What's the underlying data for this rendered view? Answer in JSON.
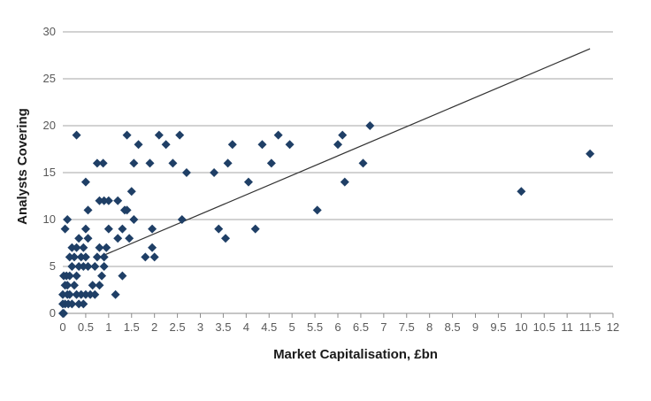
{
  "chart_data": {
    "type": "scatter",
    "title": "",
    "xlabel": "Market Capitalisation, £bn",
    "ylabel": "Analysts Covering",
    "xlim": [
      0,
      12
    ],
    "ylim": [
      0,
      30
    ],
    "x_ticks": [
      "0",
      "0.5",
      "1",
      "1.5",
      "2",
      "2.5",
      "3",
      "3.5",
      "4",
      "4.5",
      "5",
      "5.5",
      "6",
      "6.5",
      "7",
      "7.5",
      "8",
      "8.5",
      "9",
      "9.5",
      "10",
      "10.5",
      "11",
      "11.5",
      "12"
    ],
    "y_ticks": [
      "0",
      "5",
      "10",
      "15",
      "20",
      "25",
      "30"
    ],
    "grid": "horizontal",
    "marker_color": "#1f3f66",
    "trendline": {
      "x": [
        0.8,
        11.5
      ],
      "y": [
        6,
        28.2
      ]
    },
    "points": [
      [
        0,
        0
      ],
      [
        0.02,
        0
      ],
      [
        0,
        1
      ],
      [
        0.05,
        1
      ],
      [
        0,
        2
      ],
      [
        0.05,
        3
      ],
      [
        0.02,
        4
      ],
      [
        0.1,
        2
      ],
      [
        0.1,
        3
      ],
      [
        0.08,
        4
      ],
      [
        0.12,
        1
      ],
      [
        0.15,
        2
      ],
      [
        0.15,
        4
      ],
      [
        0.15,
        6
      ],
      [
        0.2,
        5
      ],
      [
        0.2,
        7
      ],
      [
        0.2,
        1
      ],
      [
        0.25,
        3
      ],
      [
        0.25,
        6
      ],
      [
        0.3,
        2
      ],
      [
        0.3,
        4
      ],
      [
        0.3,
        7
      ],
      [
        0.35,
        1
      ],
      [
        0.35,
        5
      ],
      [
        0.35,
        8
      ],
      [
        0.4,
        2
      ],
      [
        0.4,
        6
      ],
      [
        0.45,
        1
      ],
      [
        0.45,
        7
      ],
      [
        0.45,
        5
      ],
      [
        0.5,
        9
      ],
      [
        0.5,
        2
      ],
      [
        0.5,
        6
      ],
      [
        0.55,
        8
      ],
      [
        0.55,
        5
      ],
      [
        0.6,
        2
      ],
      [
        0.65,
        3
      ],
      [
        0.7,
        2
      ],
      [
        0.7,
        5
      ],
      [
        0.75,
        6
      ],
      [
        0.8,
        3
      ],
      [
        0.8,
        7
      ],
      [
        0.85,
        4
      ],
      [
        0.9,
        5
      ],
      [
        0.9,
        6
      ],
      [
        0.95,
        7
      ],
      [
        0.9,
        12
      ],
      [
        1.0,
        9
      ],
      [
        1.0,
        12
      ],
      [
        1.15,
        2
      ],
      [
        1.2,
        8
      ],
      [
        0.05,
        9
      ],
      [
        0.1,
        10
      ],
      [
        0.3,
        19
      ],
      [
        0.5,
        14
      ],
      [
        0.55,
        11
      ],
      [
        0.75,
        16
      ],
      [
        0.88,
        16
      ],
      [
        0.8,
        12
      ],
      [
        1.2,
        12
      ],
      [
        1.3,
        9
      ],
      [
        1.3,
        4
      ],
      [
        1.35,
        11
      ],
      [
        1.4,
        11
      ],
      [
        1.45,
        8
      ],
      [
        1.5,
        13
      ],
      [
        1.55,
        10
      ],
      [
        1.55,
        16
      ],
      [
        1.65,
        18
      ],
      [
        1.4,
        19
      ],
      [
        1.8,
        6
      ],
      [
        1.9,
        16
      ],
      [
        1.95,
        9
      ],
      [
        1.95,
        7
      ],
      [
        2.0,
        6
      ],
      [
        2.1,
        19
      ],
      [
        2.25,
        18
      ],
      [
        2.4,
        16
      ],
      [
        2.55,
        19
      ],
      [
        2.6,
        10
      ],
      [
        2.7,
        15
      ],
      [
        3.3,
        15
      ],
      [
        3.4,
        9
      ],
      [
        3.55,
        8
      ],
      [
        3.6,
        16
      ],
      [
        3.7,
        18
      ],
      [
        4.05,
        14
      ],
      [
        4.2,
        9
      ],
      [
        4.35,
        18
      ],
      [
        4.55,
        16
      ],
      [
        4.7,
        19
      ],
      [
        4.95,
        18
      ],
      [
        5.55,
        11
      ],
      [
        6.0,
        18
      ],
      [
        6.1,
        19
      ],
      [
        6.15,
        14
      ],
      [
        6.55,
        16
      ],
      [
        6.7,
        20
      ],
      [
        10.0,
        13
      ],
      [
        11.5,
        17
      ]
    ]
  }
}
